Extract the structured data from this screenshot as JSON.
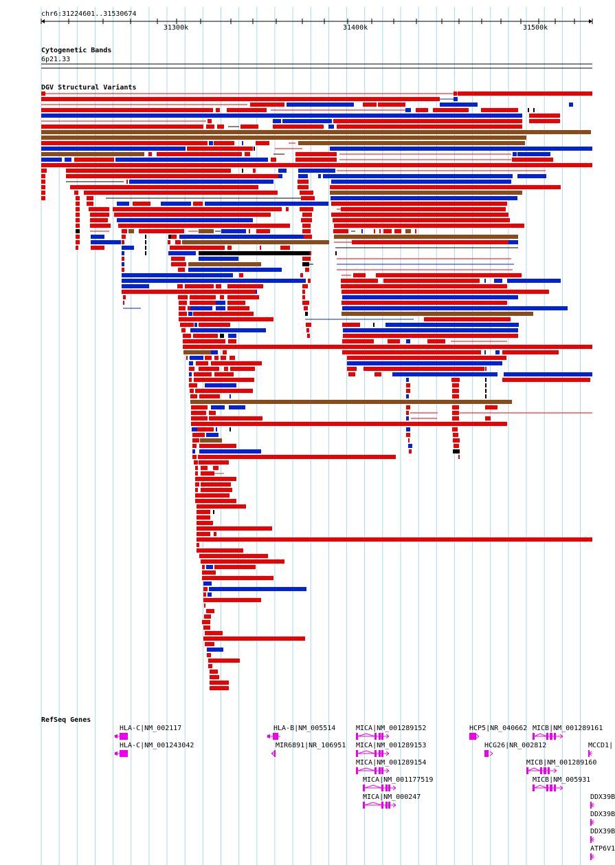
{
  "location": "chr6:31224601..31530674",
  "ruler": {
    "ticks": [
      "31300k",
      "31400k",
      "31500k"
    ]
  },
  "cytoband": {
    "title": "Cytogenetic Bands",
    "band": "6p21.33"
  },
  "dgv": {
    "title": "DGV Structural Variants"
  },
  "refseq": {
    "title": "RefSeq Genes",
    "genes": [
      {
        "label": "HLA-C|NM_002117"
      },
      {
        "label": "HLA-C|NM_001243042"
      },
      {
        "label": "HLA-B|NM_005514"
      },
      {
        "label": "MIR6891|NR_106951"
      },
      {
        "label": "MICA|NM_001289152"
      },
      {
        "label": "MICA|NM_001289153"
      },
      {
        "label": "MICA|NM_001289154"
      },
      {
        "label": "MICA|NM_001177519"
      },
      {
        "label": "MICA|NM_000247"
      },
      {
        "label": "HCP5|NR_040662"
      },
      {
        "label": "HCG26|NR_002812"
      },
      {
        "label": "MICB|NM_001289161"
      },
      {
        "label": "MICB|NM_001289160"
      },
      {
        "label": "MICB|NM_005931"
      },
      {
        "label": "MCCD1|"
      },
      {
        "label": "DDX39B"
      },
      {
        "label": "DDX39B"
      },
      {
        "label": "DDX39B"
      },
      {
        "label": "ATP6V1"
      }
    ]
  },
  "colors": {
    "red": "#ee0000",
    "blue": "#0022dd",
    "brown": "#8b4a17",
    "black": "#000000",
    "gene": "#ee00ee",
    "grid": "#a8d8f0"
  }
}
